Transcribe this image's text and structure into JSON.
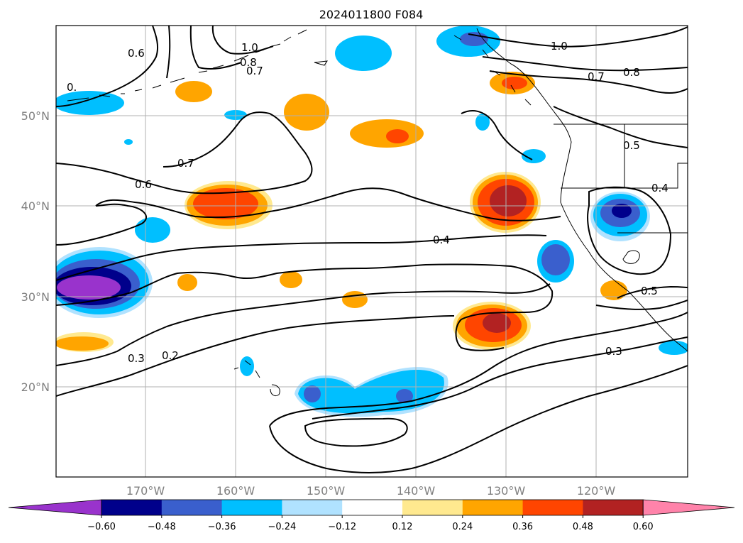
{
  "title": "2024011800 F084",
  "lat_labels": [
    "50°N",
    "40°N",
    "30°N",
    "20°N"
  ],
  "lon_labels": [
    "170°W",
    "160°W",
    "150°W",
    "140°W",
    "130°W",
    "120°W"
  ],
  "colorbar": {
    "ticks": [
      "−0.60",
      "−0.48",
      "−0.36",
      "−0.24",
      "−0.12",
      "0.12",
      "0.24",
      "0.36",
      "0.48",
      "0.60"
    ],
    "colors": [
      "#9933cc",
      "#00008b",
      "#3a5fcd",
      "#00bfff",
      "#b0e2ff",
      "#ffffff",
      "#ffe98f",
      "#ffa500",
      "#ff4500",
      "#b22222",
      "#ff83aa"
    ]
  },
  "contour_labels": [
    "0.6",
    "1.0",
    "0.8",
    "0.7",
    "0.",
    "1.0",
    "0.7",
    "0.8",
    "0.7",
    "0.6",
    "0.5",
    "0.4",
    "0.4",
    "0.5",
    "0.3",
    "0.2",
    "0.3"
  ],
  "colors": {
    "purple": "#9933cc",
    "navy": "#00008b",
    "blue": "#3a5fcd",
    "cyan": "#00bfff",
    "lightblue": "#b0e2ff",
    "yellow": "#ffe98f",
    "orange": "#ffa500",
    "red": "#ff4500",
    "darkred": "#b22222",
    "pink": "#ff83aa"
  }
}
